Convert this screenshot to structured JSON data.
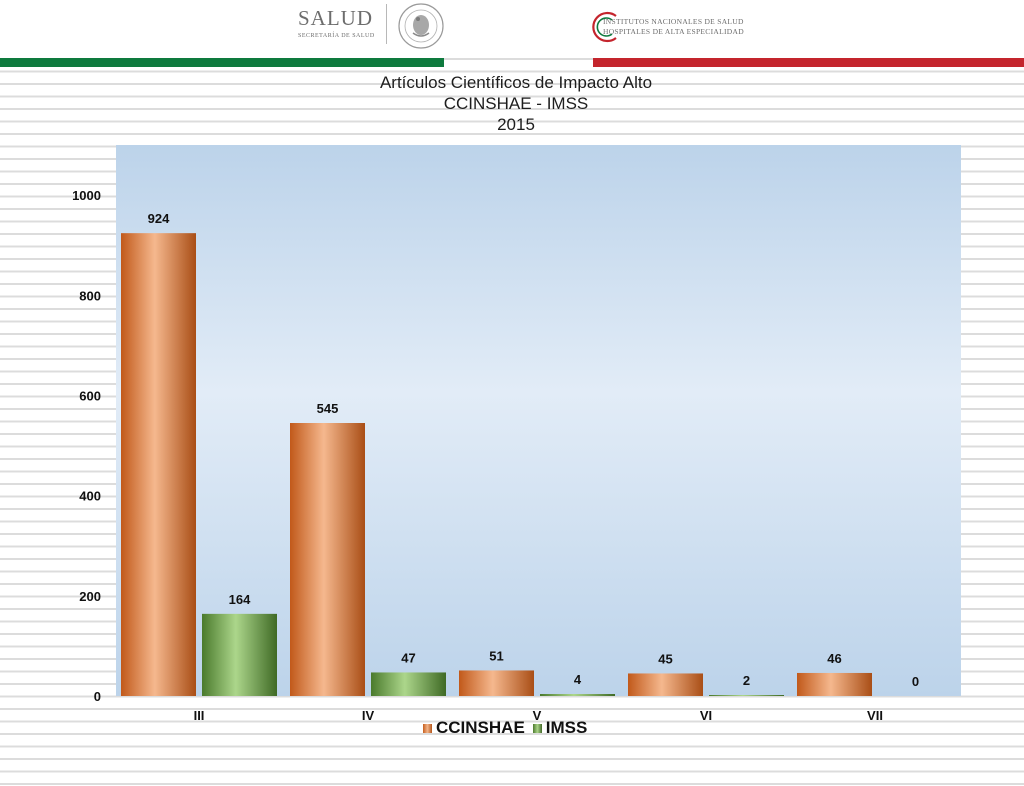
{
  "header": {
    "salud": {
      "name": "SALUD",
      "subtitle": "SECRETARÍA DE SALUD"
    },
    "seal_icon": "mexican-seal-icon",
    "institutes": {
      "line1": "INSTITUTOS NACIONALES DE SALUD",
      "line2": "HOSPITALES DE ALTA ESPECIALIDAD"
    },
    "stripe_colors": {
      "left": "#0e7a3e",
      "right": "#c4252d"
    }
  },
  "chart_data": {
    "type": "bar",
    "title_lines": [
      "Artículos Científicos de Impacto Alto",
      "CCINSHAE - IMSS",
      "2015"
    ],
    "categories": [
      "III",
      "IV",
      "V",
      "VI",
      "VII"
    ],
    "series": [
      {
        "name": "CCINSHAE",
        "values": [
          924,
          545,
          51,
          45,
          46
        ],
        "color": "#d36b26"
      },
      {
        "name": "IMSS",
        "values": [
          164,
          47,
          4,
          2,
          0
        ],
        "color": "#5e8f3c"
      }
    ],
    "ylim": [
      0,
      1100
    ],
    "yticks": [
      0,
      200,
      400,
      600,
      800,
      1000
    ],
    "xlabel": "",
    "ylabel": "",
    "grid": false,
    "legend_position": "bottom",
    "data_labels": true,
    "plot_background": "#c5daef"
  }
}
